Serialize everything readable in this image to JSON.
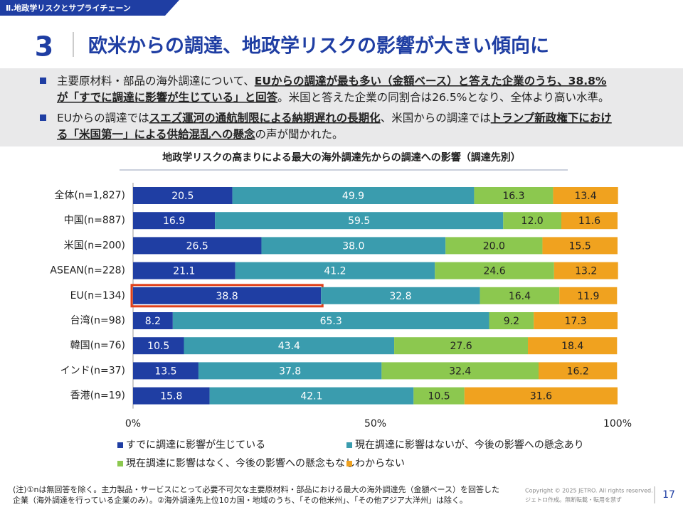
{
  "header": {
    "section": "Ⅱ.地政学リスクとサプライチェーン",
    "number": "3",
    "title": "欧米からの調達、地政学リスクの影響が大きい傾向に"
  },
  "bullets": [
    {
      "lines": [
        [
          {
            "text": "主要原材料・部品の海外調達について、",
            "bold": false
          },
          {
            "text": "EUからの調達が最も多い（金額ベース）と答えた企業のうち、38.8%",
            "bold": true
          }
        ],
        [
          {
            "text": "が「すでに調達に影響が生じている」と回答",
            "bold": true
          },
          {
            "text": "。米国と答えた企業の同割合は26.5%となり、全体より高い水準。",
            "bold": false
          }
        ]
      ]
    },
    {
      "lines": [
        [
          {
            "text": "EUからの調達では",
            "bold": false
          },
          {
            "text": "スエズ運河の通航制限による納期遅れの長期化",
            "bold": true
          },
          {
            "text": "、米国からの調達では",
            "bold": false
          },
          {
            "text": "トランプ新政権下におけ",
            "bold": true
          }
        ],
        [
          {
            "text": "る「米国第一」による供給混乱への懸念",
            "bold": true
          },
          {
            "text": "の声が聞かれた。",
            "bold": false
          }
        ]
      ]
    }
  ],
  "chart_data": {
    "type": "stacked_barh",
    "title": "地政学リスクの高まりによる最大の海外調達先からの調達への影響（調達先別）",
    "categories": [
      "全体(n=1,827)",
      "中国(n=887)",
      "米国(n=200)",
      "ASEAN(n=228)",
      "EU(n=134)",
      "台湾(n=98)",
      "韓国(n=76)",
      "インド(n=37)",
      "香港(n=19)"
    ],
    "series": [
      {
        "name": "すでに調達に影響が生じている",
        "color": "#1f3ea3",
        "values": [
          20.5,
          16.9,
          26.5,
          21.1,
          38.8,
          8.2,
          10.5,
          13.5,
          15.8
        ],
        "value_labels": [
          "20.5",
          "16.9",
          "26.5",
          "21.1",
          "38.8",
          "8.2",
          "10.5",
          "13.5",
          "15.8"
        ]
      },
      {
        "name": "現在調達に影響はないが、今後の影響への懸念あり",
        "color": "#3a9cae",
        "values": [
          49.9,
          59.5,
          38.0,
          41.2,
          32.8,
          65.3,
          43.4,
          37.8,
          42.1
        ],
        "value_labels": [
          "49.9",
          "59.5",
          "38.0",
          "41.2",
          "32.8",
          "65.3",
          "43.4",
          "37.8",
          "42.1"
        ]
      },
      {
        "name": "現在調達に影響はなく、今後の影響への懸念もなし",
        "color": "#8cc84f",
        "values": [
          16.3,
          12.0,
          20.0,
          24.6,
          16.4,
          9.2,
          27.6,
          32.4,
          10.5
        ],
        "value_labels": [
          "16.3",
          "12.0",
          "20.0",
          "24.6",
          "16.4",
          "9.2",
          "27.6",
          "32.4",
          "10.5"
        ]
      },
      {
        "name": "わからない",
        "color": "#f0a21f",
        "values": [
          13.4,
          11.6,
          15.5,
          13.2,
          11.9,
          17.3,
          18.4,
          16.2,
          31.6
        ],
        "value_labels": [
          "13.4",
          "11.6",
          "15.5",
          "13.2",
          "11.9",
          "17.3",
          "18.4",
          "16.2",
          "31.6"
        ]
      }
    ],
    "xlim": [
      0,
      100
    ],
    "xticks": [
      {
        "value": 0,
        "label": "0%"
      },
      {
        "value": 50,
        "label": "50%"
      },
      {
        "value": 100,
        "label": "100%"
      }
    ],
    "grid": false,
    "highlight": {
      "series": 0,
      "category": 4,
      "color": "#e0401a"
    }
  },
  "footnote": [
    "(注)①nは無回答を除く。主力製品・サービスにとって必要不可欠な主要原材料・部品における最大の海外調達先（金額ベース）を回答した",
    "企業（海外調達を行っている企業のみ）。②海外調達先上位10カ国・地域のうち、「その他米州」、「その他アジア大洋州」は除く。"
  ],
  "footer": {
    "copyright": "Copyright © 2025 JETRO. All rights reserved.",
    "credit": "ジェトロ作成。無断転載・転用を禁ず",
    "page": "17"
  }
}
